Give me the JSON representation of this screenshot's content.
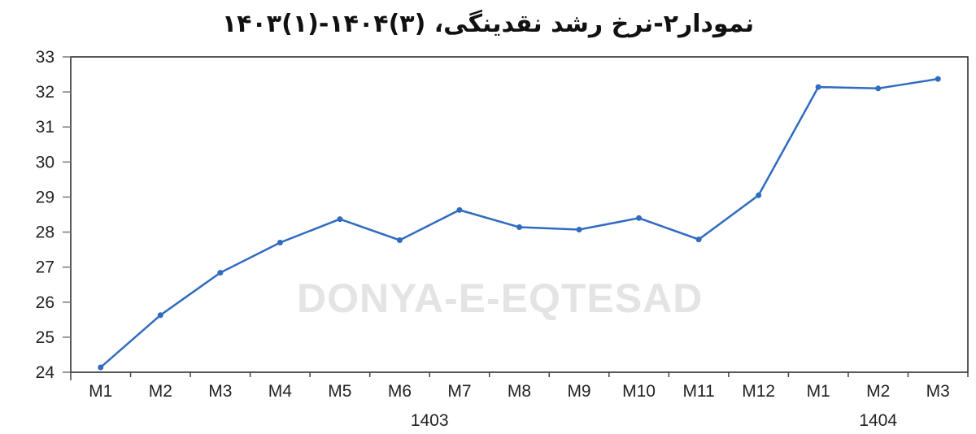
{
  "chart_data": {
    "type": "line",
    "title": "نمودار۲-نرخ رشد نقدینگی، (۳)۱۴۰۴-(۱)۱۴۰۳",
    "categories": [
      "M1",
      "M2",
      "M3",
      "M4",
      "M5",
      "M6",
      "M7",
      "M8",
      "M9",
      "M10",
      "M11",
      "M12",
      "M1",
      "M2",
      "M3"
    ],
    "groups": [
      {
        "label": "1403",
        "span": [
          0,
          11
        ]
      },
      {
        "label": "1404",
        "span": [
          12,
          14
        ]
      }
    ],
    "values": [
      24.14,
      25.63,
      26.84,
      27.7,
      28.37,
      27.77,
      28.63,
      28.14,
      28.07,
      28.4,
      27.79,
      29.05,
      32.14,
      32.1,
      32.37
    ],
    "ylim": [
      24,
      33
    ],
    "yticks": [
      24,
      25,
      26,
      27,
      28,
      29,
      30,
      31,
      32,
      33
    ],
    "grid": false,
    "line_color": "#2f6bbf"
  },
  "watermark": "DONYA-E-EQTESAD"
}
